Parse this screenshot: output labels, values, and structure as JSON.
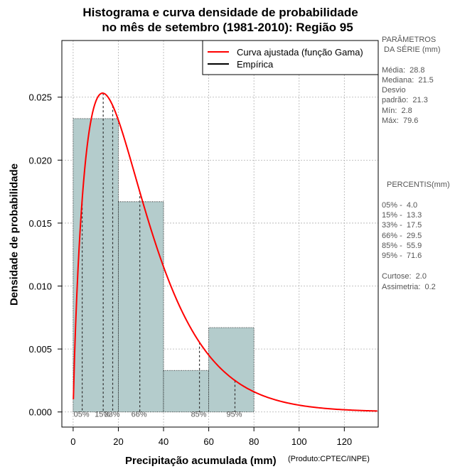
{
  "title_line1": "Histograma e curva densidade de probabilidade",
  "title_line2": "no mês de setembro (1981-2010): Região 95",
  "credit": "(Produto:CPTEC/INPE)",
  "params": {
    "header1": "PARÂMETROS",
    "header2": " DA SÉRIE (mm)",
    "media": "Média:  28.8",
    "mediana": "Mediana:  21.5",
    "desvio1": "Desvio",
    "desvio2": "padrão:  21.3",
    "min": "Mín:  2.8",
    "max": "Máx:  79.6"
  },
  "percentis": {
    "header": "PERCENTIS(mm)",
    "p05": "05% -  4.0",
    "p15": "15% -  13.3",
    "p33": "33% -  17.5",
    "p66": "66% -  29.5",
    "p85": "85% -  55.9",
    "p95": "95% -  71.6",
    "curtose": "Curtose:  2.0",
    "assimetria": "Assimetria:  0.2"
  },
  "colors": {
    "bar_fill": "#b4cccc",
    "curve": "#ff0000",
    "grid": "#b0b0b0"
  },
  "chart_data": {
    "type": "bar",
    "title": "Histograma e curva densidade de probabilidade no mês de setembro (1981-2010): Região 95",
    "xlabel": "Precipitação acumulada (mm)",
    "ylabel": "Densidade de probabilidade",
    "xlim": [
      -5,
      135
    ],
    "ylim": [
      -0.0012,
      0.0295
    ],
    "xticks": [
      0,
      20,
      40,
      60,
      80,
      100,
      120
    ],
    "yticks": [
      0.0,
      0.005,
      0.01,
      0.015,
      0.02,
      0.025
    ],
    "ytick_labels": [
      "0.000",
      "0.005",
      "0.010",
      "0.015",
      "0.020",
      "0.025"
    ],
    "bins": [
      {
        "x0": 0,
        "x1": 20,
        "density": 0.0233
      },
      {
        "x0": 20,
        "x1": 40,
        "density": 0.0167
      },
      {
        "x0": 40,
        "x1": 60,
        "density": 0.0033
      },
      {
        "x0": 60,
        "x1": 80,
        "density": 0.0067
      }
    ],
    "gamma_fit": {
      "shape": 1.83,
      "scale": 15.7
    },
    "percentile_lines": [
      {
        "label": "05%",
        "value": 4.0
      },
      {
        "label": "15%",
        "value": 13.3
      },
      {
        "label": "33%",
        "value": 17.5
      },
      {
        "label": "66%",
        "value": 29.5
      },
      {
        "label": "85%",
        "value": 55.9
      },
      {
        "label": "95%",
        "value": 71.6
      }
    ],
    "legend": {
      "position": "top-right",
      "entries": [
        "Curva ajustada (função Gama)",
        "Empírica"
      ]
    }
  }
}
